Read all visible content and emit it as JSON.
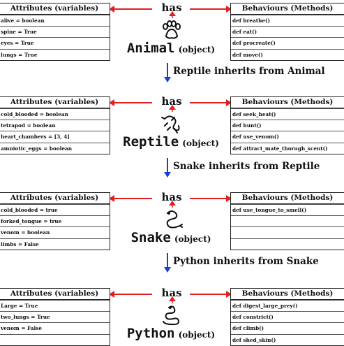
{
  "has_label": "has",
  "object_suffix": "(object)",
  "attributes_header": "Attributes (variables)",
  "behaviours_header": "Behaviours (Methods)",
  "colors": {
    "has_arrow": "#e02020",
    "inherit_arrow": "#1a3fd6"
  },
  "classes": [
    {
      "name": "Animal",
      "icon": "paw-icon",
      "attributes": [
        "alive = boolean",
        "spine = True",
        "eyes = True",
        "lungs = True"
      ],
      "methods": [
        "def breathe()",
        "def eat()",
        "def procreate()",
        "def move()"
      ]
    },
    {
      "name": "Reptile",
      "icon": "lizard-icon",
      "attributes": [
        "cold_blooded = boolean",
        "tetrapod = boolean",
        "heart_chambers = [3, 4]",
        "amniotic_eggs = boolean"
      ],
      "methods": [
        "def seek_heat()",
        "def hunt()",
        "def use_venom()",
        "def attract_mate_thorugh_scent()"
      ]
    },
    {
      "name": "Snake",
      "icon": "snake-icon",
      "attributes": [
        "cold_blooded = true",
        "forked_tongue = true",
        "venom = boolean",
        "limbs = False"
      ],
      "methods": [
        "def use_tongue_to_smell()",
        "",
        "",
        ""
      ]
    },
    {
      "name": "Python",
      "icon": "python-snake-icon",
      "attributes": [
        "Large = True",
        "two_lungs = True",
        "venom = False",
        ""
      ],
      "methods": [
        "def digest_large_prey()",
        "def constrict()",
        "def climb()",
        "def shed_skin()"
      ]
    }
  ],
  "inheritance": [
    "Reptile inherits from Animal",
    "Snake inherits from Reptile",
    "Python inherits from Snake"
  ]
}
